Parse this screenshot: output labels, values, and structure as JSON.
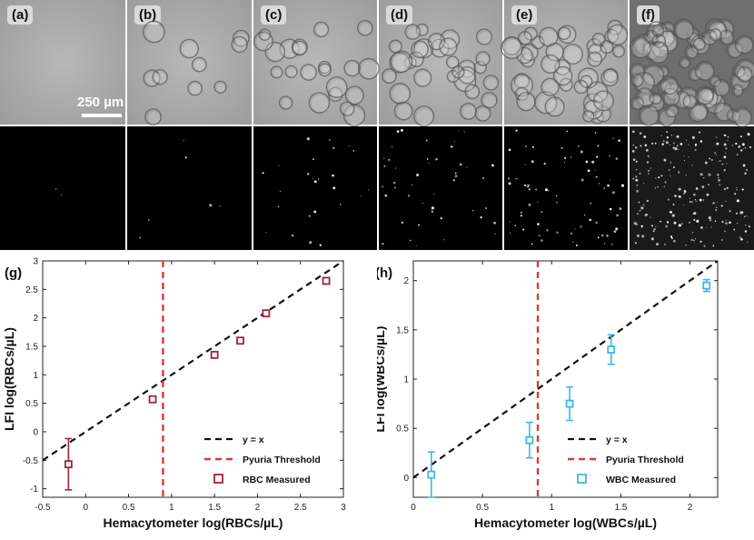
{
  "micro_panels": {
    "labels": [
      "(a)",
      "(b)",
      "(c)",
      "(d)",
      "(e)",
      "(f)"
    ],
    "scale_bar": "250 µm"
  },
  "chart_data": [
    {
      "type": "scatter",
      "panel_label": "(g)",
      "xlabel": "Hemacytometer log(RBCs/µL)",
      "ylabel": "LFI log(RBCs/µL)",
      "xlim": [
        -0.5,
        3
      ],
      "ylim": [
        -1.15,
        3
      ],
      "xticks": [
        "-0.5",
        "0",
        "0.5",
        "1",
        "1.5",
        "2",
        "2.5",
        "3"
      ],
      "yticks": [
        "-1",
        "-0.5",
        "0",
        "0.5",
        "1",
        "1.5",
        "2",
        "2.5",
        "3"
      ],
      "xtick_values": [
        -0.5,
        0,
        0.5,
        1,
        1.5,
        2,
        2.5,
        3
      ],
      "ytick_values": [
        -1,
        -0.5,
        0,
        0.5,
        1,
        1.5,
        2,
        2.5,
        3
      ],
      "threshold_x": 0.9,
      "series": [
        {
          "name": "RBC Measured",
          "color": "#a3223a",
          "x": [
            -0.2,
            0.78,
            1.5,
            1.8,
            2.1,
            2.8
          ],
          "y": [
            -0.57,
            0.57,
            1.35,
            1.6,
            2.08,
            2.65
          ],
          "err": [
            0.45,
            0.05,
            0.03,
            0.02,
            0.03,
            0.03
          ]
        }
      ],
      "legend": {
        "position": "bottom-right",
        "entries": [
          "y = x",
          "Pyuria Threshold",
          "RBC Measured"
        ]
      }
    },
    {
      "type": "scatter",
      "panel_label": "(h)",
      "xlabel": "Hemacytometer log(WBCs/µL)",
      "ylabel": "LFI log(WBCs/µL)",
      "xlim": [
        0,
        2.2
      ],
      "ylim": [
        -0.2,
        2.2
      ],
      "xticks": [
        "0",
        "0.5",
        "1",
        "1.5",
        "2"
      ],
      "yticks": [
        "0",
        "0.5",
        "1",
        "1.5",
        "2"
      ],
      "xtick_values": [
        0,
        0.5,
        1,
        1.5,
        2
      ],
      "ytick_values": [
        0,
        0.5,
        1,
        1.5,
        2
      ],
      "threshold_x": 0.9,
      "series": [
        {
          "name": "WBC Measured",
          "color": "#3fb6e6",
          "x": [
            0.13,
            0.84,
            1.13,
            1.43,
            2.12
          ],
          "y": [
            0.03,
            0.38,
            0.75,
            1.3,
            1.95
          ],
          "err": [
            0.23,
            0.18,
            0.17,
            0.15,
            0.06
          ]
        }
      ],
      "legend": {
        "position": "bottom-right",
        "entries": [
          "y = x",
          "Pyuria Threshold",
          "WBC Measured"
        ]
      }
    }
  ]
}
